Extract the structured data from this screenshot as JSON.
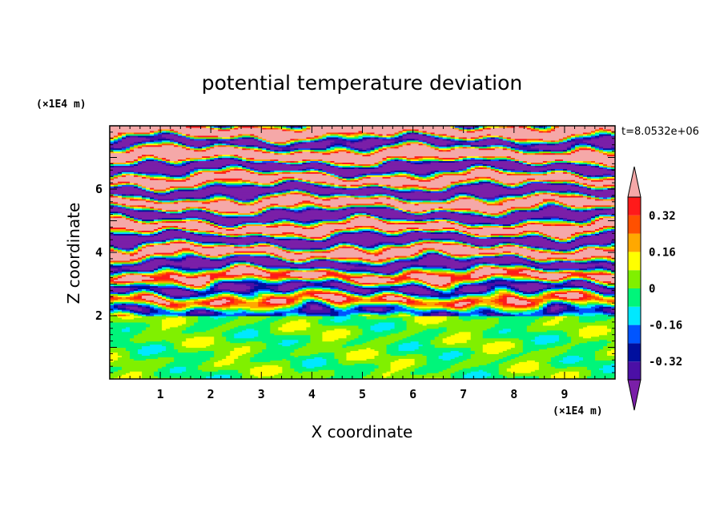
{
  "chart_data": {
    "type": "heatmap",
    "title": "potential temperature deviation",
    "xlabel": "X coordinate",
    "ylabel": "Z coordinate",
    "x_unit": "(×1E4 m)",
    "z_unit": "(×1E4 m)",
    "time_label": "t=8.0532e+06",
    "xlim": [
      0,
      10
    ],
    "zlim": [
      0,
      8
    ],
    "x_ticks": [
      "1",
      "2",
      "3",
      "4",
      "5",
      "6",
      "7",
      "8",
      "9"
    ],
    "z_ticks": [
      "2",
      "4",
      "6"
    ],
    "colorbar": {
      "levels": [
        -0.48,
        -0.4,
        -0.32,
        -0.24,
        -0.16,
        -0.08,
        0,
        0.08,
        0.16,
        0.24,
        0.32,
        0.4,
        0.48
      ],
      "colors": [
        "#7a1fa8",
        "#4b0fa6",
        "#000f9e",
        "#0055ff",
        "#00e8ff",
        "#00f57a",
        "#80f000",
        "#ffff00",
        "#ffa800",
        "#ff5000",
        "#ff1a1a",
        "#f5a8a8"
      ],
      "labels": [
        "0.32",
        "0.16",
        "0",
        "-0.16",
        "-0.32"
      ],
      "extend": "both"
    }
  }
}
